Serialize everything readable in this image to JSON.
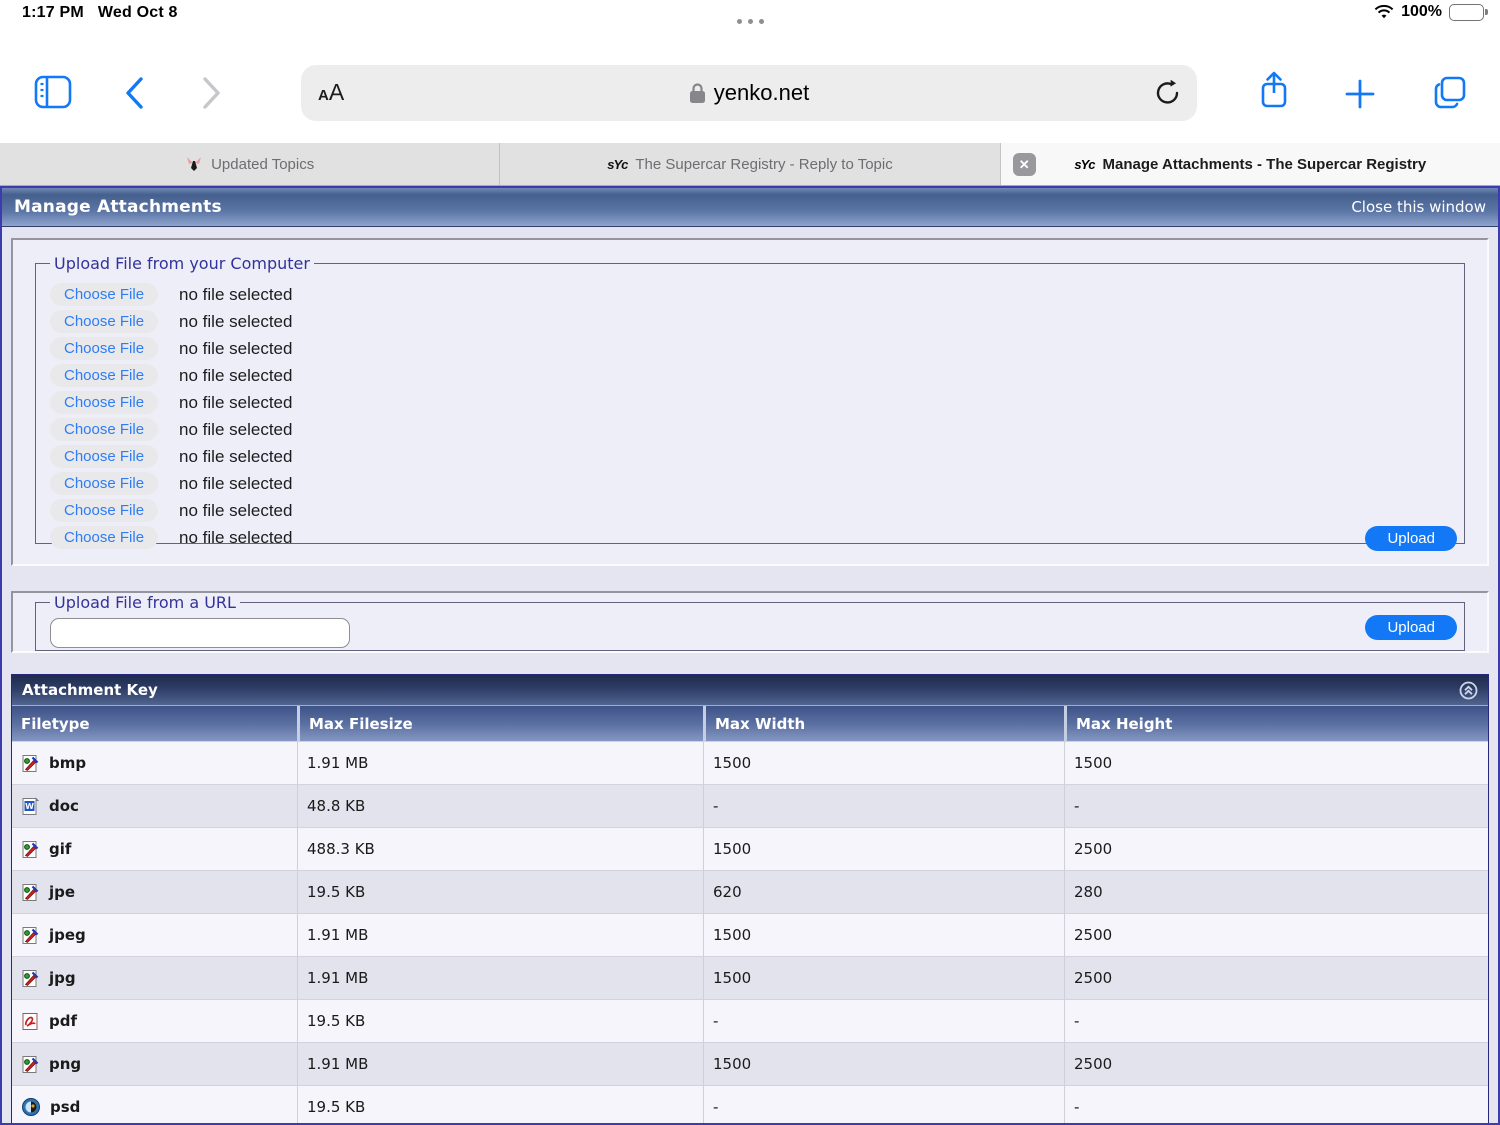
{
  "status_bar": {
    "time": "1:17 PM",
    "date": "Wed Oct 8",
    "battery": "100%"
  },
  "toolbar": {
    "text_size_small": "A",
    "text_size_big": "A",
    "url": "yenko.net"
  },
  "tabs": [
    {
      "label": "Updated Topics",
      "icon": "bird-favicon"
    },
    {
      "label": "The Supercar Registry - Reply to Topic",
      "icon": "syc-favicon"
    },
    {
      "label": "Manage Attachments - The Supercar Registry",
      "icon": "syc-favicon",
      "close_icon": "x"
    }
  ],
  "window": {
    "title": "Manage Attachments",
    "close_label": "Close this window"
  },
  "upload_computer": {
    "legend": "Upload File from your Computer",
    "choose_label": "Choose File",
    "status": "no file selected",
    "slots": 10,
    "upload_label": "Upload"
  },
  "upload_url": {
    "legend": "Upload File from a URL",
    "input_value": "",
    "upload_label": "Upload"
  },
  "attachment_key": {
    "title": "Attachment Key",
    "collapse_icon": "collapse-circle-icon",
    "columns": [
      "Filetype",
      "Max Filesize",
      "Max Width",
      "Max Height"
    ],
    "rows": [
      {
        "icon": "image-file-icon",
        "type": "bmp",
        "filesize": "1.91 MB",
        "width": "1500",
        "height": "1500"
      },
      {
        "icon": "doc-file-icon",
        "type": "doc",
        "filesize": "48.8 KB",
        "width": "-",
        "height": "-"
      },
      {
        "icon": "image-file-icon",
        "type": "gif",
        "filesize": "488.3 KB",
        "width": "1500",
        "height": "2500"
      },
      {
        "icon": "image-file-icon",
        "type": "jpe",
        "filesize": "19.5 KB",
        "width": "620",
        "height": "280"
      },
      {
        "icon": "image-file-icon",
        "type": "jpeg",
        "filesize": "1.91 MB",
        "width": "1500",
        "height": "2500"
      },
      {
        "icon": "image-file-icon",
        "type": "jpg",
        "filesize": "1.91 MB",
        "width": "1500",
        "height": "2500"
      },
      {
        "icon": "pdf-file-icon",
        "type": "pdf",
        "filesize": "19.5 KB",
        "width": "-",
        "height": "-"
      },
      {
        "icon": "image-file-icon",
        "type": "png",
        "filesize": "1.91 MB",
        "width": "1500",
        "height": "2500"
      },
      {
        "icon": "psd-file-icon",
        "type": "psd",
        "filesize": "19.5 KB",
        "width": "-",
        "height": "-"
      }
    ]
  },
  "colors": {
    "ios_blue": "#1278f6",
    "header_blue_dark": "#45608e",
    "tcat_navy": "#1e2b4c",
    "row_light": "#f5f5fb",
    "row_dark": "#e3e3ee",
    "legend_navy": "#32329a"
  }
}
